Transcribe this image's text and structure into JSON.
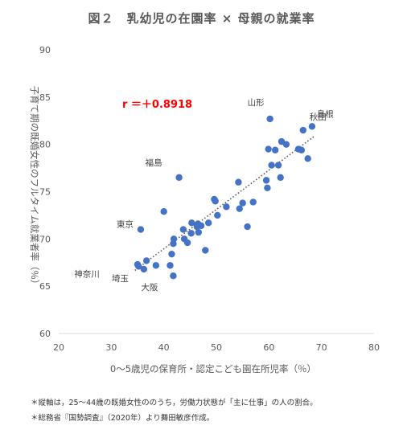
{
  "chart_data": {
    "type": "scatter",
    "title": "図２　乳幼児の在園率 × 母親の就業率",
    "xlabel": "0～5歳児の保育所・認定こども園在所児率（％）",
    "ylabel": "子育て期の既婚女性のフルタイム就業者率（％）",
    "xlim": [
      20,
      80
    ],
    "ylim": [
      60,
      90
    ],
    "x_ticks": [
      "20",
      "30",
      "40",
      "50",
      "60",
      "70",
      "80"
    ],
    "y_ticks": [
      "60",
      "65",
      "70",
      "75",
      "80",
      "85",
      "90"
    ],
    "grid": false,
    "trendline": "linear-dotted",
    "annotation": "r ＝＋0.8918",
    "series": [
      {
        "color": "#4472c4",
        "points": [
          [
            35.0,
            67.3
          ],
          [
            35.2,
            67.1
          ],
          [
            36.2,
            66.8
          ],
          [
            36.7,
            67.7
          ],
          [
            38.5,
            67.2
          ],
          [
            35.6,
            71.0
          ],
          [
            40.0,
            72.9
          ],
          [
            41.2,
            67.2
          ],
          [
            41.5,
            68.4
          ],
          [
            41.8,
            66.1
          ],
          [
            41.8,
            69.5
          ],
          [
            41.9,
            70.0
          ],
          [
            42.9,
            76.5
          ],
          [
            43.7,
            71.0
          ],
          [
            43.9,
            70.0
          ],
          [
            44.5,
            69.6
          ],
          [
            45.2,
            70.6
          ],
          [
            45.3,
            71.7
          ],
          [
            46.3,
            71.3
          ],
          [
            46.5,
            71.6
          ],
          [
            46.6,
            70.7
          ],
          [
            47.1,
            71.4
          ],
          [
            47.9,
            68.8
          ],
          [
            48.5,
            71.7
          ],
          [
            49.6,
            74.2
          ],
          [
            49.8,
            74.0
          ],
          [
            50.2,
            72.5
          ],
          [
            51.9,
            73.4
          ],
          [
            54.2,
            76.0
          ],
          [
            54.4,
            73.2
          ],
          [
            55.0,
            73.8
          ],
          [
            55.9,
            71.3
          ],
          [
            57.0,
            73.9
          ],
          [
            59.5,
            76.2
          ],
          [
            59.7,
            75.4
          ],
          [
            59.9,
            79.5
          ],
          [
            60.2,
            82.7
          ],
          [
            60.5,
            77.8
          ],
          [
            61.2,
            79.4
          ],
          [
            61.8,
            77.8
          ],
          [
            62.2,
            76.5
          ],
          [
            62.4,
            80.3
          ],
          [
            63.3,
            80.0
          ],
          [
            65.6,
            79.5
          ],
          [
            66.2,
            79.4
          ],
          [
            66.5,
            81.5
          ],
          [
            67.4,
            78.5
          ],
          [
            68.2,
            81.9
          ]
        ]
      }
    ],
    "point_labels": [
      {
        "text": "山形",
        "x": 60.2,
        "y": 82.7
      },
      {
        "text": "秋田",
        "x": 66.5,
        "y": 81.5
      },
      {
        "text": "島根",
        "x": 68.2,
        "y": 81.9
      },
      {
        "text": "福島",
        "x": 42.9,
        "y": 76.5
      },
      {
        "text": "東京",
        "x": 35.6,
        "y": 71.0
      },
      {
        "text": "神奈川",
        "x": 35.2,
        "y": 67.1
      },
      {
        "text": "埼玉",
        "x": 36.2,
        "y": 66.8
      },
      {
        "text": "大阪",
        "x": 41.8,
        "y": 66.1
      }
    ]
  },
  "footnotes": {
    "note1": "＊縦軸は，25～44歳の既婚女性ののうち，労働力状態が「主に仕事」の人の割合。",
    "note2": "＊総務省『国勢調査』（2020年）より舞田敏彦作成。"
  }
}
